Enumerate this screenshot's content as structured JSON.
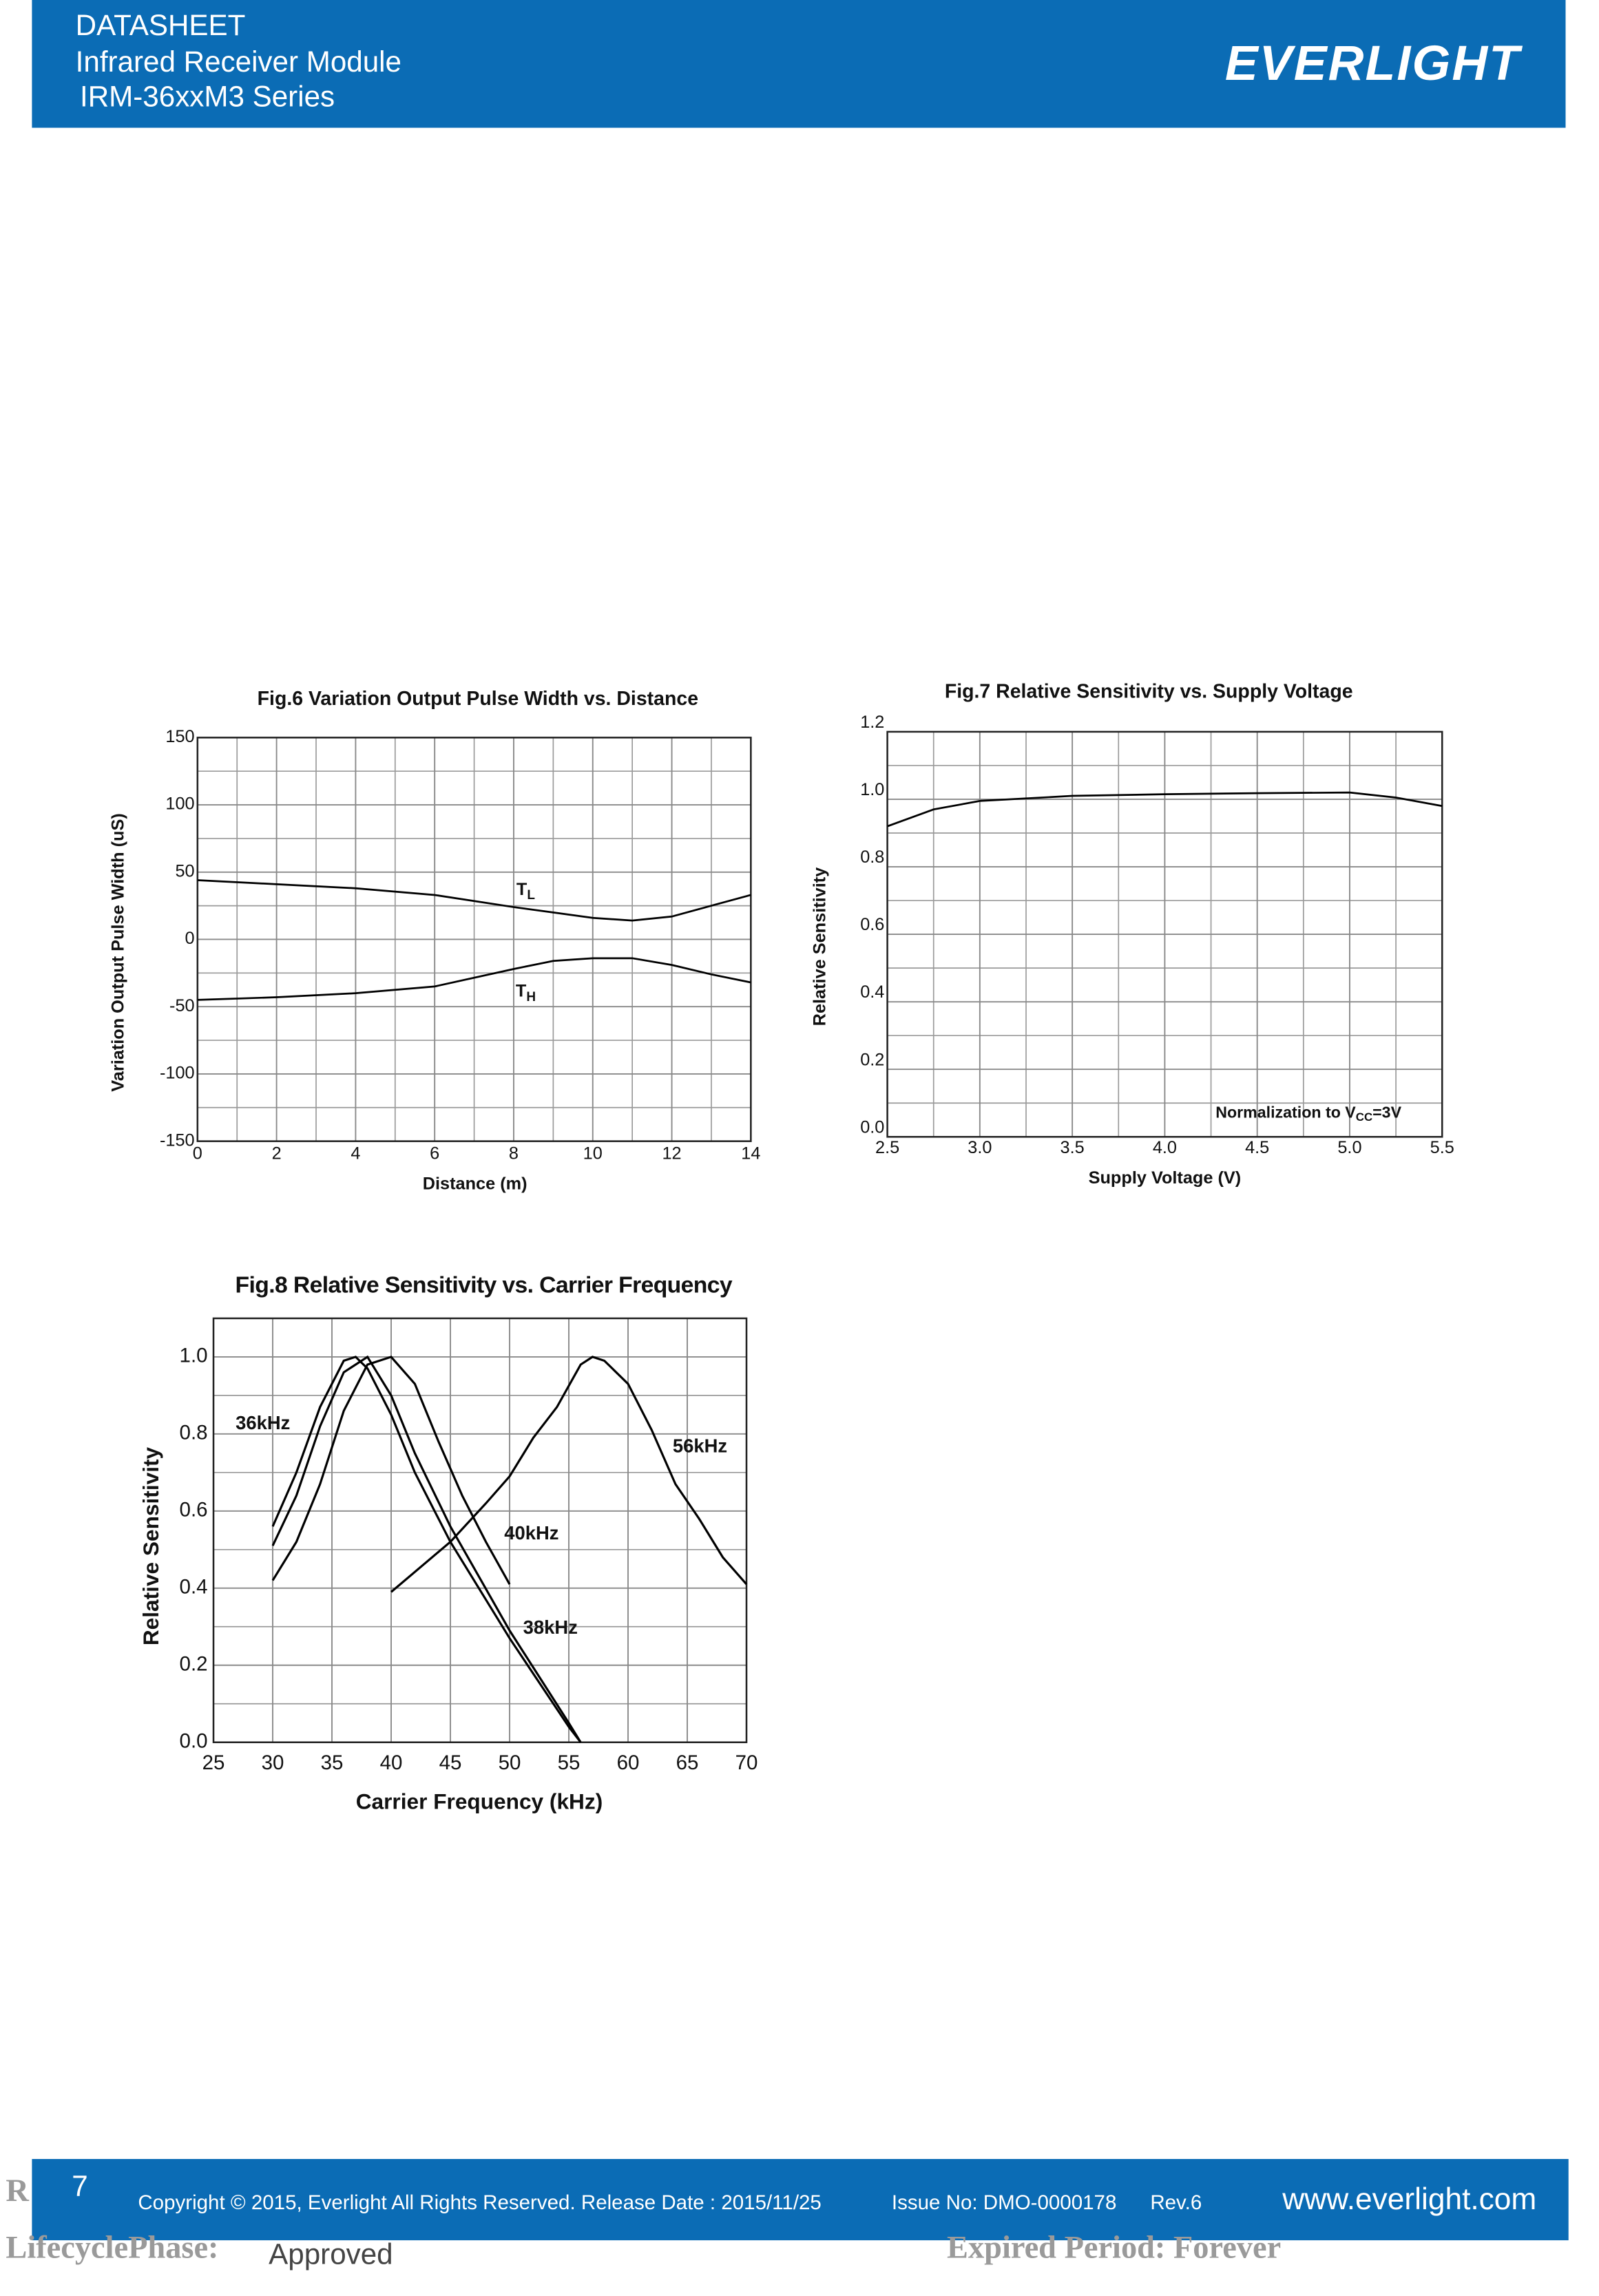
{
  "header": {
    "line1": "DATASHEET",
    "line2": "Infrared Receiver Module",
    "line3": "IRM-36xxM3 Series",
    "logo": "EVERLIGHT"
  },
  "chart_data": [
    {
      "type": "line",
      "title": "Fig.6 Variation Output Pulse Width vs. Distance",
      "x_label": "Distance (m)",
      "y_label": "Variation Output Pulse Width (uS)",
      "x": [
        0,
        2,
        4,
        6,
        8,
        9,
        10,
        11,
        12,
        13,
        14
      ],
      "series": [
        {
          "name": "T",
          "subscript": "L",
          "color": "#000000",
          "values": [
            44,
            41,
            38,
            33,
            24,
            20,
            16,
            14,
            17,
            25,
            33
          ]
        },
        {
          "name": "T",
          "subscript": "H",
          "color": "#000000",
          "values": [
            -45,
            -43,
            -40,
            -35,
            -22,
            -16,
            -14,
            -14,
            -19,
            -26,
            -32
          ]
        }
      ],
      "xlim": [
        0,
        14
      ],
      "xticks": [
        0,
        2,
        4,
        6,
        8,
        10,
        12,
        14
      ],
      "ylim": [
        -150,
        150
      ],
      "yticks": [
        -150,
        -100,
        -50,
        0,
        50,
        100,
        150
      ],
      "grid": true,
      "x_minor_grid": true,
      "y_minor_grid": true
    },
    {
      "type": "line",
      "title": "Fig.7 Relative Sensitivity vs. Supply Voltage",
      "x_label": "Supply Voltage (V)",
      "y_label": "Relative Sensitivity",
      "annotation": {
        "text": "Normalization to V",
        "subscript": "CC",
        "suffix": "=3V"
      },
      "x": [
        2.5,
        2.75,
        3.0,
        3.5,
        4.0,
        4.5,
        5.0,
        5.25,
        5.5
      ],
      "series": [
        {
          "color": "#000000",
          "values": [
            0.92,
            0.97,
            0.995,
            1.01,
            1.015,
            1.018,
            1.02,
            1.005,
            0.98
          ]
        }
      ],
      "xlim": [
        2.5,
        5.5
      ],
      "xticks": [
        2.5,
        {
          "value": 3,
          "label": "3.0"
        },
        3.5,
        {
          "value": 4,
          "label": "4.0"
        },
        4.5,
        {
          "value": 5,
          "label": "5.0"
        },
        5.5
      ],
      "ylim": [
        0,
        1.2
      ],
      "yticks": [
        {
          "value": 0,
          "label": "0.0"
        },
        0.2,
        0.4,
        0.6,
        0.8,
        {
          "value": 1,
          "label": "1.0"
        },
        1.2
      ],
      "grid": true,
      "x_minor_grid": true,
      "y_minor_grid": true
    },
    {
      "type": "line",
      "title": "Fig.8 Relative Sensitivity vs. Carrier Frequency",
      "x_label": "Carrier Frequency (kHz)",
      "y_label": "Relative Sensitivity",
      "series": [
        {
          "name": "36kHz",
          "color": "#000000",
          "x": [
            30,
            32,
            34,
            36,
            37,
            38,
            40,
            42,
            45,
            50,
            55,
            56
          ],
          "values": [
            0.56,
            0.7,
            0.87,
            0.99,
            1.0,
            0.97,
            0.85,
            0.7,
            0.52,
            0.27,
            0.04,
            0
          ]
        },
        {
          "name": "38kHz",
          "color": "#000000",
          "x": [
            30,
            32,
            34,
            36,
            38,
            40,
            42,
            45,
            50,
            55,
            56
          ],
          "values": [
            0.51,
            0.64,
            0.82,
            0.96,
            1.0,
            0.9,
            0.75,
            0.56,
            0.29,
            0.05,
            0
          ]
        },
        {
          "name": "40kHz",
          "color": "#000000",
          "x": [
            30,
            32,
            34,
            36,
            38,
            40,
            42,
            44,
            46,
            48,
            50
          ],
          "values": [
            0.42,
            0.52,
            0.67,
            0.86,
            0.98,
            1.0,
            0.93,
            0.78,
            0.64,
            0.52,
            0.41
          ]
        },
        {
          "name": "56kHz",
          "color": "#000000",
          "x": [
            40,
            45,
            48,
            50,
            52,
            54,
            56,
            57,
            58,
            60,
            62,
            64,
            66,
            68,
            70
          ],
          "values": [
            0.39,
            0.52,
            0.62,
            0.69,
            0.79,
            0.87,
            0.98,
            1.0,
            0.99,
            0.93,
            0.81,
            0.67,
            0.58,
            0.48,
            0.41
          ]
        }
      ],
      "xlim": [
        25,
        70
      ],
      "xticks": [
        25,
        30,
        35,
        40,
        45,
        50,
        55,
        60,
        65,
        70
      ],
      "ylim": [
        0,
        1.1
      ],
      "yticks": [
        {
          "value": 0,
          "label": "0.0"
        },
        0.2,
        0.4,
        0.6,
        0.8,
        {
          "value": 1,
          "label": "1.0"
        }
      ],
      "grid": true,
      "x_minor_grid": false,
      "y_minor_grid": true
    }
  ],
  "footer": {
    "page": "7",
    "copyright": "Copyright © 2015, Everlight All Rights Reserved. Release Date : 2015/11/25",
    "issue": "Issue No: DMO-0000178",
    "rev": "Rev.6",
    "website": "www.everlight.com"
  },
  "stamp": {
    "r": "R",
    "lifecycle": "LifecyclePhase:",
    "status": "Approved",
    "expired": "Expired Period: Forever"
  }
}
